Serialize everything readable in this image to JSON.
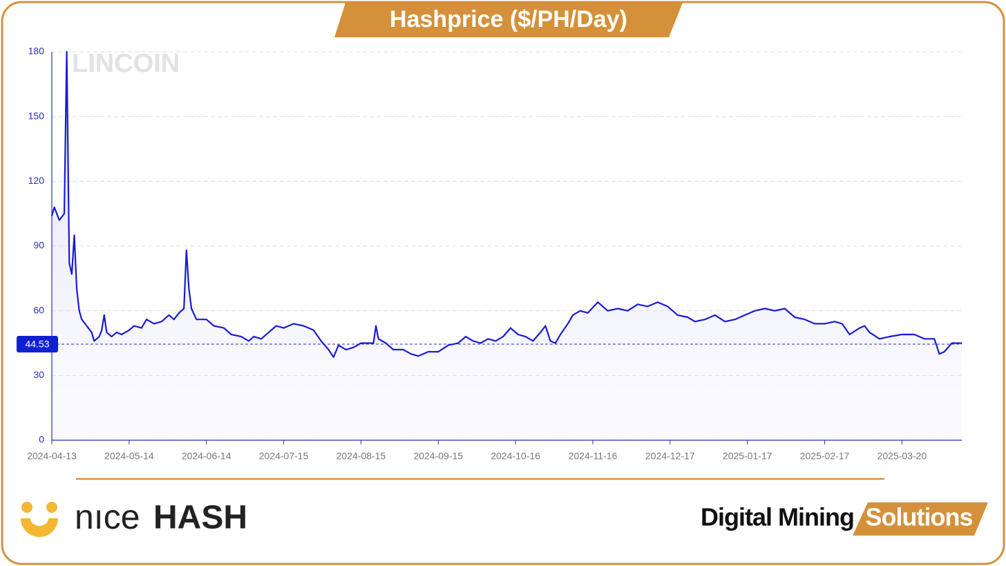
{
  "chart_data": {
    "type": "line",
    "title": "Hashprice ($/PH/Day)",
    "watermark": "LINCOIN",
    "current_value": 44.53,
    "color": "#1a1ad0",
    "grid": true,
    "xlim": [
      "2024-04-13",
      "2025-04-13"
    ],
    "xticks": [
      "2024-04-13",
      "2024-05-14",
      "2024-06-14",
      "2024-07-15",
      "2024-08-15",
      "2024-09-15",
      "2024-10-16",
      "2024-11-16",
      "2024-12-17",
      "2025-01-17",
      "2025-02-17",
      "2025-03-20"
    ],
    "ylim": [
      0,
      180
    ],
    "yticks": [
      0,
      30,
      60,
      90,
      120,
      150,
      180
    ],
    "x": [
      "2024-04-13",
      "2024-04-14",
      "2024-04-16",
      "2024-04-18",
      "2024-04-19",
      "2024-04-20",
      "2024-04-21",
      "2024-04-22",
      "2024-04-23",
      "2024-04-24",
      "2024-04-25",
      "2024-04-27",
      "2024-04-29",
      "2024-04-30",
      "2024-05-02",
      "2024-05-03",
      "2024-05-04",
      "2024-05-05",
      "2024-05-07",
      "2024-05-09",
      "2024-05-11",
      "2024-05-14",
      "2024-05-16",
      "2024-05-19",
      "2024-05-21",
      "2024-05-24",
      "2024-05-27",
      "2024-05-30",
      "2024-06-01",
      "2024-06-03",
      "2024-06-05",
      "2024-06-06",
      "2024-06-07",
      "2024-06-08",
      "2024-06-10",
      "2024-06-14",
      "2024-06-17",
      "2024-06-21",
      "2024-06-24",
      "2024-06-28",
      "2024-07-01",
      "2024-07-03",
      "2024-07-06",
      "2024-07-09",
      "2024-07-12",
      "2024-07-15",
      "2024-07-19",
      "2024-07-23",
      "2024-07-27",
      "2024-07-30",
      "2024-08-02",
      "2024-08-04",
      "2024-08-06",
      "2024-08-09",
      "2024-08-12",
      "2024-08-15",
      "2024-08-20",
      "2024-08-21",
      "2024-08-22",
      "2024-08-25",
      "2024-08-28",
      "2024-09-01",
      "2024-09-04",
      "2024-09-07",
      "2024-09-11",
      "2024-09-15",
      "2024-09-19",
      "2024-09-23",
      "2024-09-26",
      "2024-09-29",
      "2024-10-02",
      "2024-10-05",
      "2024-10-08",
      "2024-10-11",
      "2024-10-14",
      "2024-10-17",
      "2024-10-20",
      "2024-10-23",
      "2024-10-26",
      "2024-10-28",
      "2024-10-30",
      "2024-11-01",
      "2024-11-03",
      "2024-11-06",
      "2024-11-08",
      "2024-11-11",
      "2024-11-14",
      "2024-11-18",
      "2024-11-22",
      "2024-11-26",
      "2024-11-30",
      "2024-12-04",
      "2024-12-08",
      "2024-12-12",
      "2024-12-16",
      "2024-12-20",
      "2024-12-24",
      "2024-12-27",
      "2024-12-31",
      "2025-01-04",
      "2025-01-08",
      "2025-01-12",
      "2025-01-16",
      "2025-01-20",
      "2025-01-24",
      "2025-01-28",
      "2025-02-01",
      "2025-02-05",
      "2025-02-09",
      "2025-02-13",
      "2025-02-17",
      "2025-02-21",
      "2025-02-24",
      "2025-02-27",
      "2025-03-03",
      "2025-03-05",
      "2025-03-07",
      "2025-03-11",
      "2025-03-15",
      "2025-03-20",
      "2025-03-25",
      "2025-03-29",
      "2025-04-02",
      "2025-04-04",
      "2025-04-06",
      "2025-04-09",
      "2025-04-13"
    ],
    "values": [
      104,
      108,
      102,
      105,
      180,
      82,
      77,
      95,
      70,
      60,
      56,
      53,
      50,
      46,
      48,
      51,
      58,
      50,
      48,
      50,
      49,
      51,
      53,
      52,
      56,
      54,
      55,
      58,
      56,
      59,
      61,
      88,
      70,
      61,
      56,
      56,
      53,
      52,
      49,
      48,
      46,
      48,
      47,
      50,
      53,
      52,
      54,
      53,
      51,
      46,
      42,
      38.5,
      44,
      42,
      43,
      45,
      45,
      53,
      47,
      45,
      42,
      42,
      40,
      39,
      41,
      41,
      44,
      45,
      48,
      46,
      45,
      47,
      46,
      48,
      52,
      49,
      48,
      46,
      50,
      53,
      46,
      45,
      49,
      54,
      58,
      60,
      59,
      64,
      60,
      61,
      60,
      63,
      62,
      64,
      62,
      58,
      57,
      55,
      56,
      58,
      55,
      56,
      58,
      60,
      61,
      60,
      61,
      57,
      56,
      54,
      54,
      55,
      54,
      49,
      52,
      53,
      50,
      47,
      48,
      49,
      49,
      47,
      47,
      40,
      41,
      45,
      45
    ]
  },
  "brand_left": {
    "light": "nıce",
    "bold": "HASH"
  },
  "brand_right": {
    "text": "Digital Mining",
    "tag": "Solutions"
  }
}
